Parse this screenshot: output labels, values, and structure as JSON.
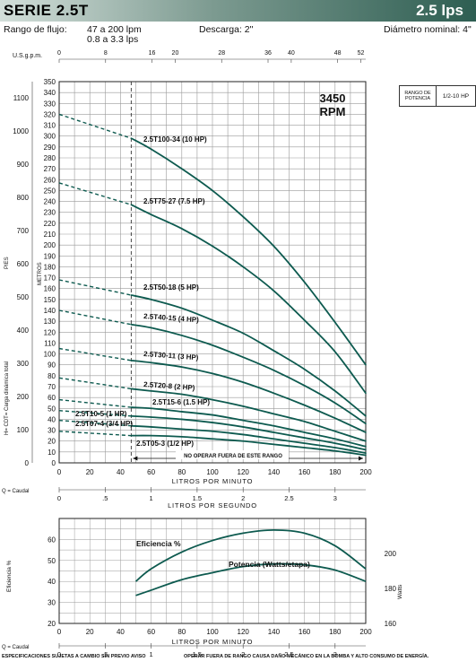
{
  "header": {
    "title": "SERIE 2.5T",
    "capacity": "2.5 lps",
    "flow_range_label": "Rango de flujo:",
    "flow_range_gpm": "47 a 200 lpm",
    "flow_range_lps": "0.8 a 3.3 lps",
    "discharge": "Descarga: 2\"",
    "diameter": "Diámetro nominal: 4\""
  },
  "power_legend": {
    "label": "RANGO DE POTENCIA",
    "value": "1/2-10 HP"
  },
  "chart_data": [
    {
      "type": "line",
      "subtitle": "3450 RPM",
      "xlabel": "LITROS POR MINUTO",
      "xlim": [
        0,
        200
      ],
      "x_ticks": [
        "0",
        "20",
        "40",
        "60",
        "80",
        "100",
        "120",
        "140",
        "160",
        "180",
        "200"
      ],
      "ylabel": "H= CDT= Carga dinámica total",
      "y_unit_left": "PIES",
      "y_unit_right": "METROS",
      "ylim": [
        0,
        350
      ],
      "y_ticks": [
        "0",
        "10",
        "20",
        "30",
        "40",
        "50",
        "60",
        "70",
        "80",
        "90",
        "100",
        "110",
        "120",
        "130",
        "140",
        "150",
        "160",
        "170",
        "180",
        "190",
        "200",
        "210",
        "220",
        "230",
        "240",
        "250",
        "260",
        "270",
        "280",
        "290",
        "300",
        "310",
        "320",
        "330",
        "340",
        "350"
      ],
      "feet_ticks": [
        "0",
        "100",
        "200",
        "300",
        "400",
        "500",
        "600",
        "700",
        "800",
        "900",
        "1000",
        "1100"
      ],
      "gpm_axis_label": "U.S.g.p.m.",
      "gpm_ticks": [
        "0",
        "8",
        "16",
        "20",
        "28",
        "36",
        "40",
        "48",
        "52"
      ],
      "lps_axis_label": "LITROS POR SEGUNDO",
      "lps_ticks": [
        "0",
        ".5",
        "1",
        "1.5",
        "2",
        "2.5",
        "3"
      ],
      "q_label": "Q = Caudal",
      "min_flow_lpm": 47,
      "operating_note": "NO OPERAR FUERA DE ESTE RANGO",
      "series": [
        {
          "name": "2.5T100-34 (10 HP)",
          "dashed_x": [
            0,
            47
          ],
          "dashed_y": [
            320,
            298
          ],
          "x": [
            47,
            60,
            80,
            100,
            120,
            140,
            160,
            180,
            200
          ],
          "y": [
            298,
            288,
            270,
            250,
            226,
            199,
            166,
            129,
            90
          ]
        },
        {
          "name": "2.5T75-27 (7.5 HP)",
          "dashed_x": [
            0,
            47
          ],
          "dashed_y": [
            257,
            237
          ],
          "x": [
            47,
            60,
            80,
            100,
            120,
            140,
            160,
            180,
            200
          ],
          "y": [
            237,
            228,
            215,
            199,
            180,
            158,
            131,
            102,
            64
          ]
        },
        {
          "name": "2.5T50-18 (5 HP)",
          "dashed_x": [
            0,
            47
          ],
          "dashed_y": [
            168,
            154
          ],
          "x": [
            47,
            60,
            80,
            100,
            120,
            140,
            160,
            180,
            200
          ],
          "y": [
            154,
            150,
            142,
            131,
            119,
            103,
            86,
            66,
            43
          ]
        },
        {
          "name": "2.5T40-15 (4 HP)",
          "dashed_x": [
            0,
            47
          ],
          "dashed_y": [
            140,
            127
          ],
          "x": [
            47,
            60,
            80,
            100,
            120,
            140,
            160,
            180,
            200
          ],
          "y": [
            127,
            124,
            117,
            108,
            97,
            85,
            71,
            55,
            36
          ]
        },
        {
          "name": "2.5T30-11 (3 HP)",
          "dashed_x": [
            0,
            47
          ],
          "dashed_y": [
            105,
            94
          ],
          "x": [
            47,
            60,
            80,
            100,
            120,
            140,
            160,
            180,
            200
          ],
          "y": [
            94,
            92,
            88,
            82,
            74,
            64,
            53,
            41,
            28
          ]
        },
        {
          "name": "2.5T20-8 (2 HP)",
          "dashed_x": [
            0,
            47
          ],
          "dashed_y": [
            78,
            68
          ],
          "x": [
            47,
            60,
            80,
            100,
            120,
            140,
            160,
            180,
            200
          ],
          "y": [
            68,
            66,
            63,
            58,
            52,
            45,
            38,
            29,
            20
          ]
        },
        {
          "name": "2.5T15-6 (1.5 HP)",
          "dashed_x": [
            0,
            47
          ],
          "dashed_y": [
            58,
            51
          ],
          "x": [
            47,
            60,
            80,
            100,
            120,
            140,
            160,
            180,
            200
          ],
          "y": [
            51,
            50,
            47,
            44,
            39,
            34,
            28,
            22,
            15
          ]
        },
        {
          "name": "2.5T10-5 (1 HP)",
          "dashed_x": [
            0,
            47
          ],
          "dashed_y": [
            48,
            43
          ],
          "x": [
            47,
            60,
            80,
            100,
            120,
            140,
            160,
            180,
            200
          ],
          "y": [
            43,
            42,
            40,
            37,
            33,
            28,
            23,
            18,
            12
          ]
        },
        {
          "name": "2.5T07-4 (3/4 HP)",
          "dashed_x": [
            0,
            47
          ],
          "dashed_y": [
            39,
            34
          ],
          "x": [
            47,
            60,
            80,
            100,
            120,
            140,
            160,
            180,
            200
          ],
          "y": [
            34,
            33,
            31,
            29,
            26,
            22,
            18,
            14,
            9
          ]
        },
        {
          "name": "2.5T05-3 (1/2 HP)",
          "dashed_x": [
            0,
            47
          ],
          "dashed_y": [
            29,
            25
          ],
          "x": [
            47,
            60,
            80,
            100,
            120,
            140,
            160,
            180,
            200
          ],
          "y": [
            25,
            25,
            24,
            22,
            20,
            17,
            14,
            11,
            7
          ]
        }
      ]
    },
    {
      "type": "line",
      "xlabel": "LITROS POR MINUTO",
      "xlim": [
        0,
        200
      ],
      "x_ticks": [
        "0",
        "20",
        "40",
        "60",
        "80",
        "100",
        "120",
        "140",
        "160",
        "180",
        "200"
      ],
      "ylabel": "Eficiencia %",
      "ylim": [
        20,
        70
      ],
      "y_ticks": [
        "20",
        "30",
        "40",
        "50",
        "60"
      ],
      "y2label": "Watts",
      "y2lim": [
        160,
        220
      ],
      "y2_ticks": [
        "160",
        "180",
        "200"
      ],
      "lps_ticks": [
        "0",
        ".5",
        "1",
        "1.5",
        "2",
        "2.5",
        "3"
      ],
      "q_label": "Q = Caudal",
      "series": [
        {
          "name": "Eficiencia %",
          "axis": "left",
          "x": [
            50,
            60,
            80,
            100,
            120,
            140,
            160,
            180,
            200
          ],
          "y": [
            40,
            46,
            54,
            59.5,
            63,
            64.5,
            63,
            57,
            46
          ]
        },
        {
          "name": "Potencia (Watts/etapa)",
          "axis": "right",
          "x": [
            50,
            60,
            80,
            100,
            120,
            140,
            160,
            180,
            200
          ],
          "y": [
            176,
            179,
            185,
            189,
            192.5,
            194,
            193.5,
            190.5,
            184
          ]
        }
      ]
    }
  ],
  "footer": {
    "left": "ESPECIFICACIONES SUJETAS A CAMBIO SIN PREVIO AVISO",
    "right": "OPERAR FUERA DE RANGO CAUSA DAÑO MECÁNICO EN LA BOMBA Y ALTO CONSUMO DE ENERGÍA."
  },
  "colors": {
    "curve": "#0d5a4f",
    "grid": "#9a9a9a",
    "header_dark": "#2e5e52"
  }
}
